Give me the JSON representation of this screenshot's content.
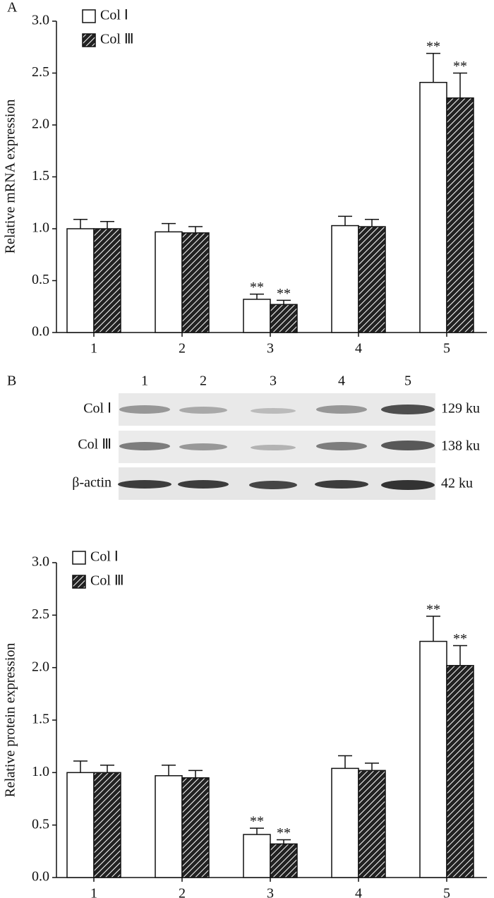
{
  "panel_labels": [
    "A",
    "B"
  ],
  "chart_data": [
    {
      "type": "bar",
      "ylabel": "Relative mRNA expression",
      "categories": [
        "1",
        "2",
        "3",
        "4",
        "5"
      ],
      "series": [
        {
          "name": "Col Ⅰ",
          "color": "#ffffff",
          "hatch": false,
          "values": [
            1.0,
            0.97,
            0.32,
            1.03,
            2.41
          ],
          "errors": [
            0.09,
            0.08,
            0.05,
            0.09,
            0.28
          ],
          "significance": [
            null,
            null,
            "**",
            null,
            "**"
          ]
        },
        {
          "name": "Col Ⅲ",
          "color": "#222222",
          "hatch": true,
          "values": [
            1.0,
            0.96,
            0.27,
            1.02,
            2.26
          ],
          "errors": [
            0.07,
            0.06,
            0.04,
            0.07,
            0.24
          ],
          "significance": [
            null,
            null,
            "**",
            null,
            "**"
          ]
        }
      ],
      "ylim": [
        0,
        3
      ],
      "yticks": [
        {
          "value": 0,
          "label": "0.0"
        },
        0.5,
        {
          "value": 1,
          "label": "1.0"
        },
        1.5,
        {
          "value": 2,
          "label": "2.0"
        },
        2.5,
        {
          "value": 3,
          "label": "3.0"
        }
      ],
      "legend": "upper left"
    },
    {
      "type": "bar",
      "ylabel": "Relative protein expression",
      "categories": [
        "1",
        "2",
        "3",
        "4",
        "5"
      ],
      "series": [
        {
          "name": "Col Ⅰ",
          "color": "#ffffff",
          "hatch": false,
          "values": [
            1.0,
            0.97,
            0.41,
            1.04,
            2.25
          ],
          "errors": [
            0.11,
            0.1,
            0.06,
            0.12,
            0.24
          ],
          "significance": [
            null,
            null,
            "**",
            null,
            "**"
          ]
        },
        {
          "name": "Col Ⅲ",
          "color": "#222222",
          "hatch": true,
          "values": [
            1.0,
            0.95,
            0.32,
            1.02,
            2.02
          ],
          "errors": [
            0.07,
            0.07,
            0.04,
            0.07,
            0.19
          ],
          "significance": [
            null,
            null,
            "**",
            null,
            "**"
          ]
        }
      ],
      "ylim": [
        0,
        3
      ],
      "yticks": [
        {
          "value": 0,
          "label": "0.0"
        },
        0.5,
        {
          "value": 1,
          "label": "1.0"
        },
        1.5,
        {
          "value": 2,
          "label": "2.0"
        },
        2.5,
        {
          "value": 3,
          "label": "3.0"
        }
      ],
      "legend": "upper left"
    }
  ],
  "blot": {
    "lanes": [
      "1",
      "2",
      "3",
      "4",
      "5"
    ],
    "rows": [
      {
        "label": "Col Ⅰ",
        "size": "129 ku"
      },
      {
        "label": "Col Ⅲ",
        "size": "138 ku"
      },
      {
        "label": "β-actin",
        "size": "42 ku"
      }
    ]
  }
}
